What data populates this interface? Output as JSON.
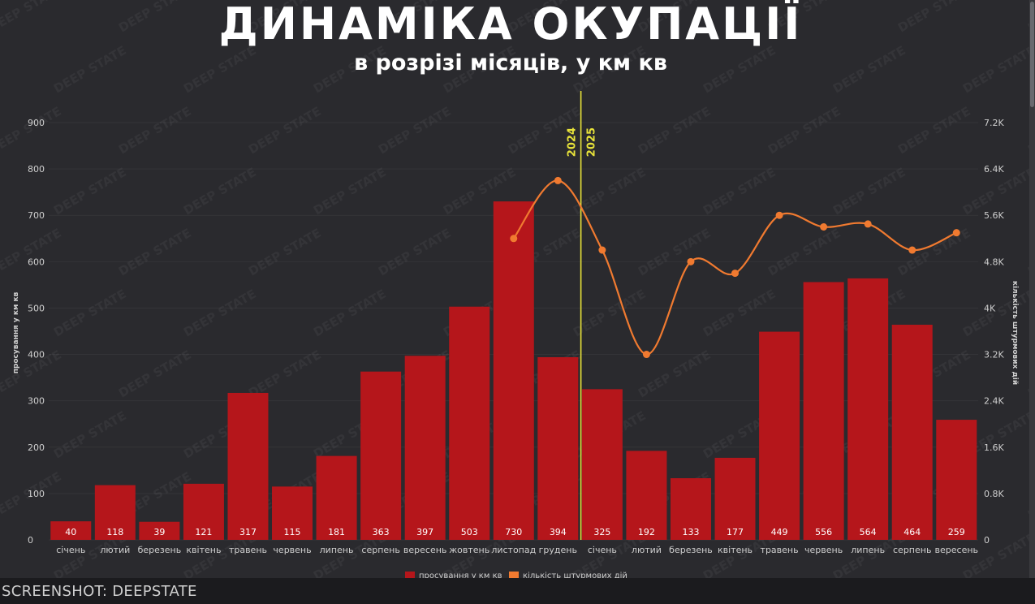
{
  "header": {
    "title": "ДИНАМІКА ОКУПАЦІЇ",
    "subtitle": "в розрізі місяців, у км кв"
  },
  "caption": "SCREENSHOT: DEEPSTATE",
  "watermark": "DEEP STATE",
  "colors": {
    "background": "#2a2a2e",
    "bar": "#b5161b",
    "line": "#f07a30",
    "divider": "#e8e33a",
    "text": "#ffffff",
    "axis_text": "#cfcfcf"
  },
  "chart_data": {
    "type": "bar",
    "categories": [
      "січень",
      "лютий",
      "березень",
      "квітень",
      "травень",
      "червень",
      "липень",
      "серпень",
      "вересень",
      "жовтень",
      "листопад",
      "грудень",
      "січень",
      "лютий",
      "березень",
      "квітень",
      "травень",
      "червень",
      "липень",
      "серпень",
      "вересень"
    ],
    "series": [
      {
        "name": "просування у км кв",
        "type": "bar",
        "axis": "left",
        "values": [
          40,
          118,
          39,
          121,
          317,
          115,
          181,
          363,
          397,
          503,
          730,
          394,
          325,
          192,
          133,
          177,
          449,
          556,
          564,
          464,
          259
        ]
      },
      {
        "name": "кількість штурмових дій",
        "type": "line",
        "axis": "right",
        "values": [
          null,
          null,
          null,
          null,
          null,
          null,
          null,
          null,
          null,
          null,
          5200,
          6200,
          5000,
          3200,
          4800,
          4600,
          5600,
          5400,
          5450,
          5000,
          5300
        ]
      }
    ],
    "ylabel": "просування у км кв",
    "ylabel_right": "кількість штурмових дій",
    "ylim": [
      0,
      900
    ],
    "yticks": [
      "0",
      "100",
      "200",
      "300",
      "400",
      "500",
      "600",
      "700",
      "800",
      "900"
    ],
    "ylim_right": [
      0,
      7200
    ],
    "yticks_right": [
      "0",
      "0.8K",
      "1.6K",
      "2.4K",
      "3.2K",
      "4K",
      "4.8K",
      "5.6K",
      "6.4K",
      "7.2K"
    ],
    "year_markers": [
      "2024",
      "2025"
    ],
    "legend_position": "bottom"
  }
}
